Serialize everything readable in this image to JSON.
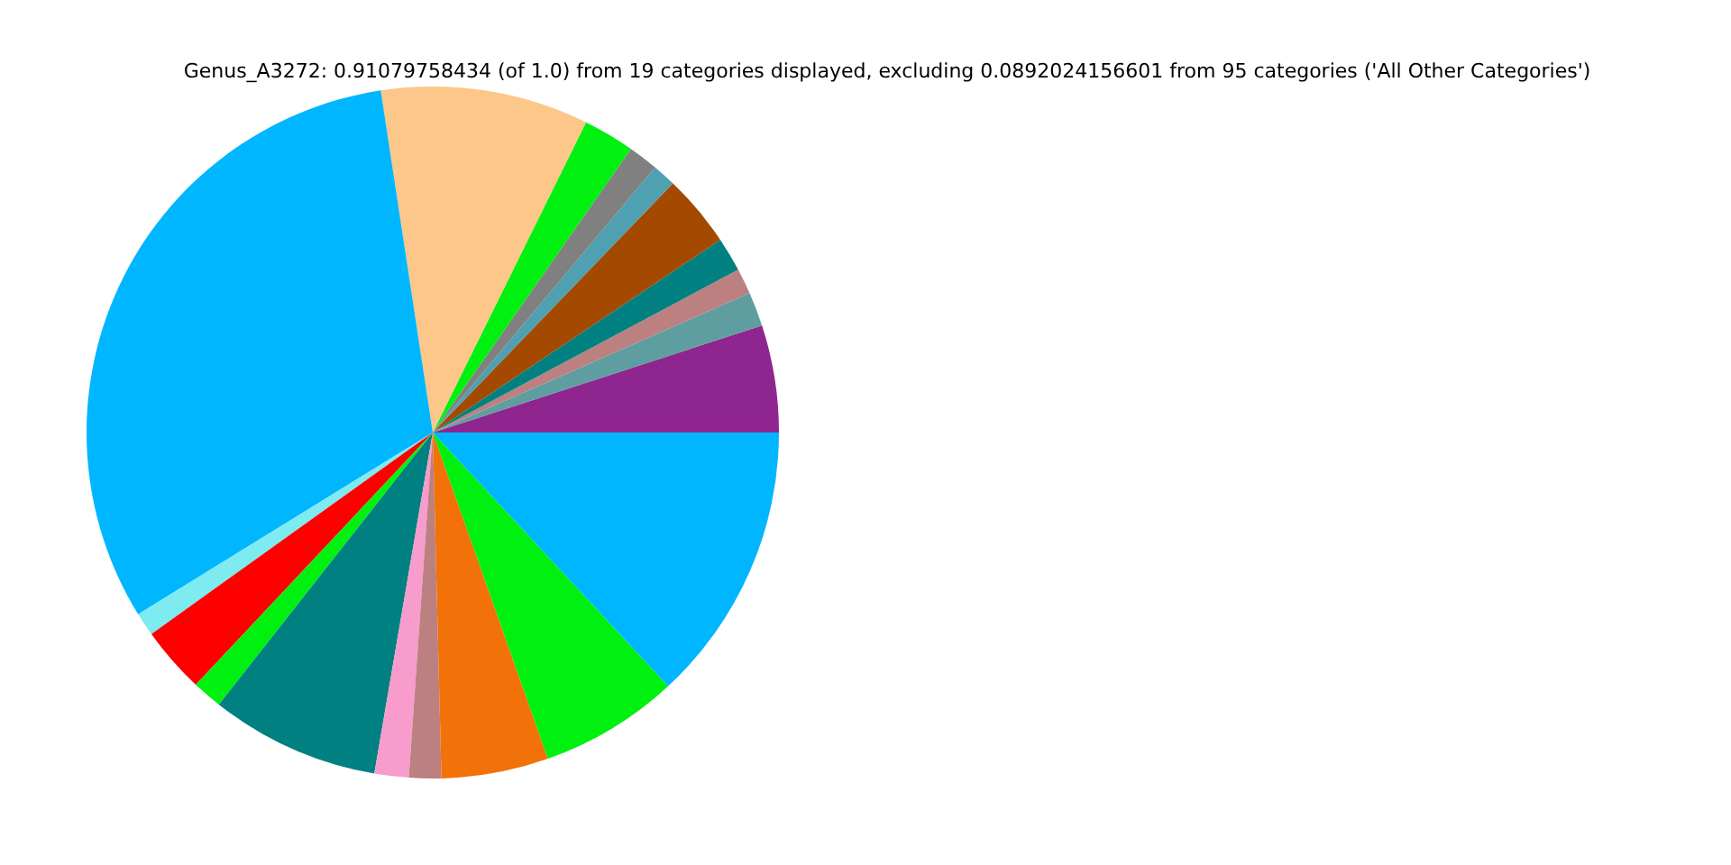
{
  "chart_data": {
    "type": "pie",
    "title": "Genus_A3272: 0.91079758434 (of 1.0) from 19 categories displayed, excluding 0.0892024156601 from 95 categories ('All Other Categories')",
    "categories": [
      null,
      null,
      null,
      null,
      null,
      null,
      null,
      null,
      null,
      null,
      null,
      null,
      null,
      null,
      null,
      null,
      null,
      null,
      null
    ],
    "values": [
      5.0,
      1.6,
      1.2,
      1.6,
      3.4,
      1.1,
      1.4,
      2.4,
      9.7,
      31.4,
      1.1,
      3.1,
      1.4,
      7.9,
      1.6,
      1.5,
      5.0,
      6.5,
      13.1
    ],
    "colors": [
      "#8f268f",
      "#5f9ea0",
      "#bc8080",
      "#008080",
      "#a34a00",
      "#4fa0b0",
      "#808080",
      "#00f00f",
      "#fdc78a",
      "#00b6ff",
      "#7eebf0",
      "#ff0000",
      "#00f00f",
      "#008080",
      "#f79ccc",
      "#bc8080",
      "#f27209",
      "#00f00f",
      "#00b6ff"
    ]
  }
}
